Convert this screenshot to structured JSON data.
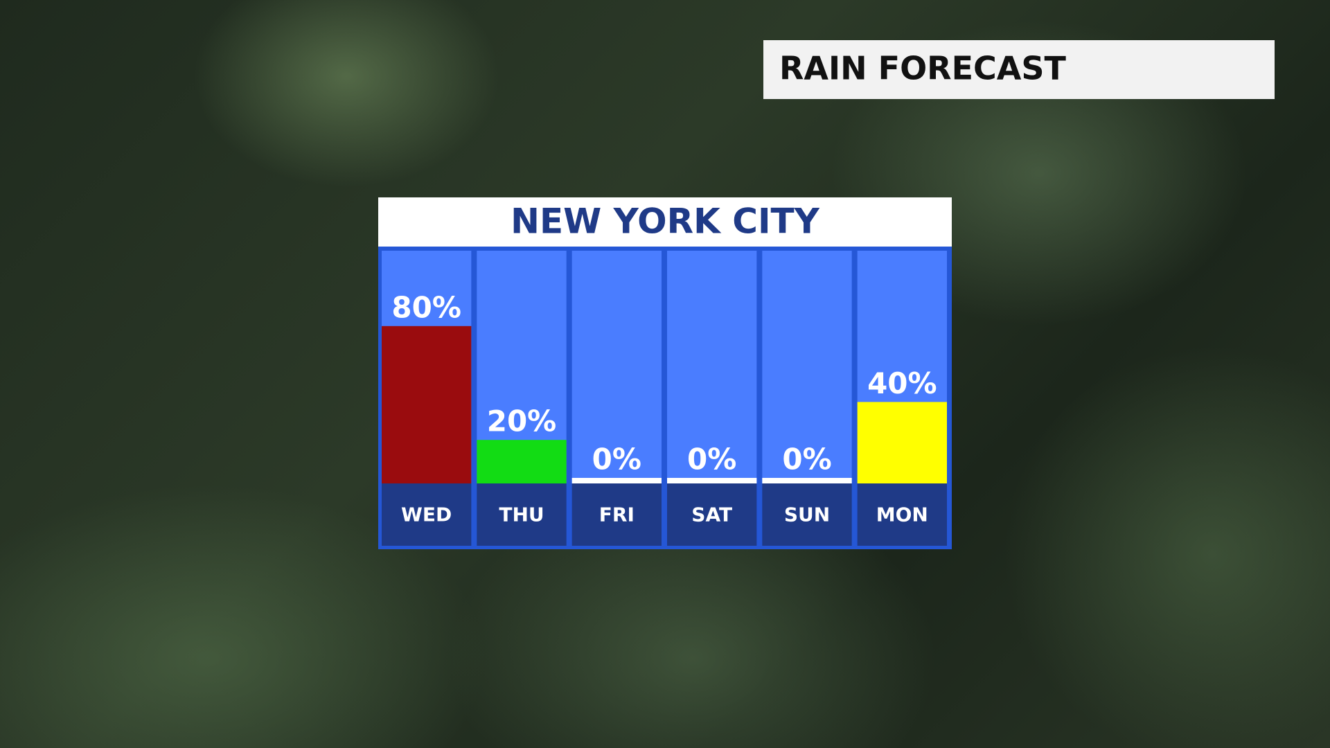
{
  "chart_data": {
    "type": "bar",
    "title": "RAIN FORECAST",
    "subtitle": "NEW YORK CITY",
    "categories": [
      "WED",
      "THU",
      "FRI",
      "SAT",
      "SUN",
      "MON"
    ],
    "values": [
      80,
      20,
      0,
      0,
      0,
      40
    ],
    "value_labels": [
      "80%",
      "20%",
      "0%",
      "0%",
      "0%",
      "40%"
    ],
    "colors": [
      "#9a0c0e",
      "#12dc14",
      "#ffffff",
      "#ffffff",
      "#ffffff",
      "#ffff00"
    ]
  }
}
